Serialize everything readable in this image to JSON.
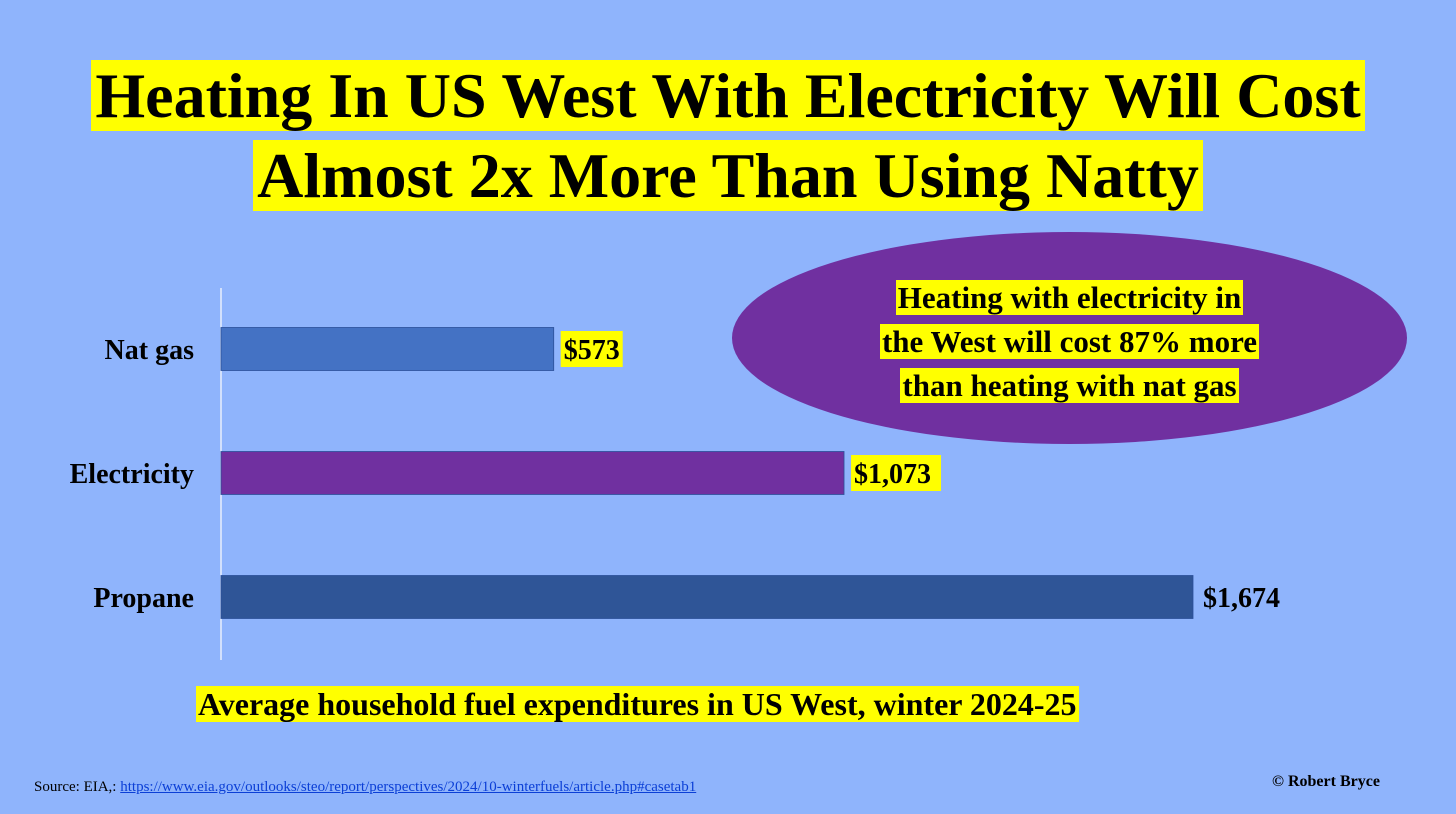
{
  "title": {
    "line1": "Heating In US West With Electricity Will Cost",
    "line2": "Almost 2x More Than Using Natty"
  },
  "callout": {
    "line1": "Heating with electricity in",
    "line2": "the West will cost 87% more",
    "line3": "than heating with nat gas"
  },
  "chart_data": {
    "type": "bar",
    "orientation": "horizontal",
    "categories": [
      "Nat gas",
      "Electricity",
      "Propane"
    ],
    "values": [
      573,
      1073,
      1674
    ],
    "value_labels": [
      "$573",
      "$1,073",
      "$1,674"
    ],
    "colors": [
      "#4472c4",
      "#7030a0",
      "#2f5597"
    ],
    "label_highlight": [
      true,
      true,
      false
    ],
    "xlim": [
      0,
      1674
    ],
    "grid": false,
    "title": "",
    "xlabel": "",
    "ylabel": "",
    "caption": "Average household fuel expenditures in US West, winter 2024-25"
  },
  "footer": {
    "source_prefix": "Source: EIA,: ",
    "source_link": "https://www.eia.gov/outlooks/steo/report/perspectives/2024/10-winterfuels/article.php#casetab1",
    "copyright": "© Robert Bryce"
  },
  "colors": {
    "background": "#8fb4fc",
    "highlight": "#ffff00",
    "callout": "#7030a0"
  }
}
